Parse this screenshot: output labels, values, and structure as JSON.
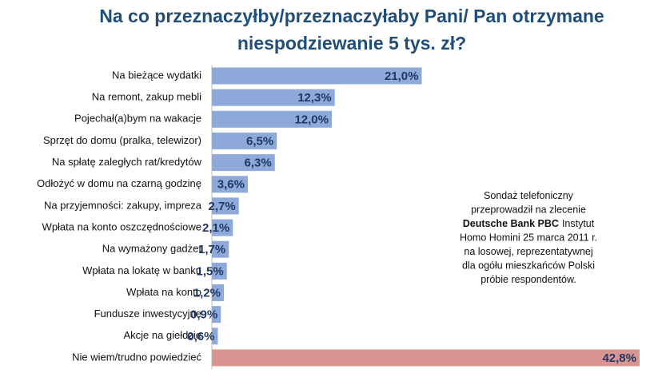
{
  "chart_data": {
    "type": "bar",
    "orientation": "horizontal",
    "title": [
      "Na co przeznaczyłby/przeznaczyłaby Pani/ Pan otrzymane",
      "niespodziewanie 5 tys. zł?"
    ],
    "categories": [
      "Na bieżące wydatki",
      "Na remont, zakup mebli",
      "Pojechał(a)bym na wakacje",
      "Sprzęt do domu (pralka, telewizor)",
      "Na spłatę zaległych rat/kredytów",
      "Odłożyć w domu na czarną godzinę",
      "Na przyjemności: zakupy, impreza",
      "Wpłata na konto oszczędnościowe",
      "Na wymażony gadżet",
      "Wpłata na lokatę w banku",
      "Wpłata na konto",
      "Fundusze inwestycyjne",
      "Akcje na giełdzie",
      "Nie wiem/trudno powiedzieć"
    ],
    "values": [
      21.0,
      12.3,
      12.0,
      6.5,
      6.3,
      3.6,
      2.7,
      2.1,
      1.7,
      1.5,
      1.2,
      0.9,
      0.6,
      42.8
    ],
    "value_labels": [
      "21,0%",
      "12,3%",
      "12,0%",
      "6,5%",
      "6,3%",
      "3,6%",
      "2,7%",
      "2,1%",
      "1,7%",
      "1,5%",
      "1,2%",
      "0,9%",
      "0,6%",
      "42,8%"
    ],
    "colors": [
      "#8eaadb",
      "#8eaadb",
      "#8eaadb",
      "#8eaadb",
      "#8eaadb",
      "#8eaadb",
      "#8eaadb",
      "#8eaadb",
      "#8eaadb",
      "#8eaadb",
      "#8eaadb",
      "#8eaadb",
      "#8eaadb",
      "#d99594"
    ],
    "annotation": [
      [
        {
          "text": "Sondaż telefoniczny"
        }
      ],
      [
        {
          "text": "przeprowadził na zlecenie"
        }
      ],
      [
        {
          "text": "Deutsche Bank PBC",
          "bold": true
        },
        {
          "text": "Instytut"
        }
      ],
      [
        {
          "text": "Homo Homini 25 marca 2011 r."
        }
      ],
      [
        {
          "text": "na losowej, reprezentatywnej"
        }
      ],
      [
        {
          "text": "dla ogółu mieszkańców  Polski"
        }
      ],
      [
        {
          "text": "próbie respondentów."
        }
      ]
    ]
  }
}
